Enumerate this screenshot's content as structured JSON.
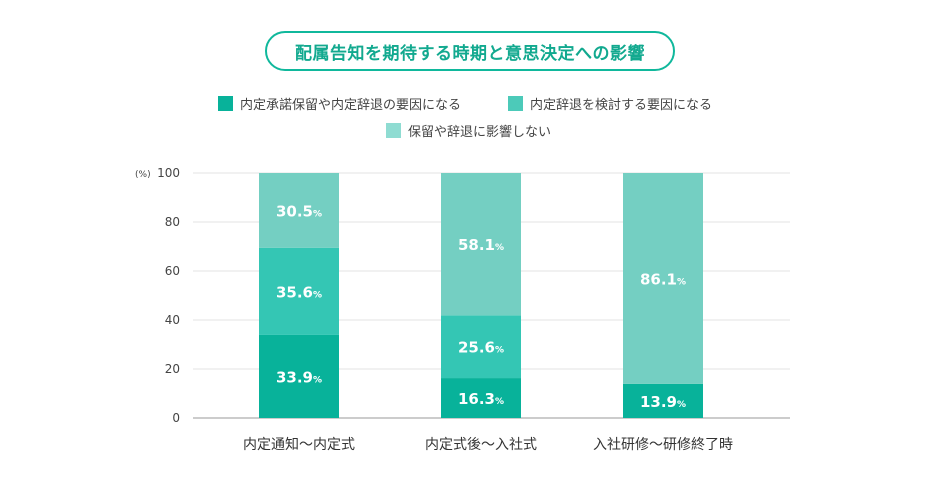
{
  "chart_data": {
    "type": "bar",
    "stacked": true,
    "title": "配属告知を期待する時期と意思決定への影響",
    "ylabel": "(%)",
    "ylim": [
      0,
      100
    ],
    "yticks": [
      0,
      20,
      40,
      60,
      80,
      100
    ],
    "grid": true,
    "legend_position": "top",
    "categories": [
      "内定通知〜内定式",
      "内定式後〜入社式",
      "入社研修〜研修終了時"
    ],
    "series": [
      {
        "name": "内定承諾保留や内定辞退の要因になる",
        "values": [
          33.9,
          16.3,
          13.9
        ],
        "labels": [
          "33.9",
          "16.3",
          "13.9"
        ],
        "color": "#08b29a"
      },
      {
        "name": "内定辞退を検討する要因になる",
        "values": [
          35.6,
          25.6,
          0
        ],
        "labels": [
          "35.6",
          "25.6",
          "0"
        ],
        "color": "#34c6b4"
      },
      {
        "name": "保留や辞退に影響しない",
        "values": [
          30.5,
          58.1,
          86.1
        ],
        "labels": [
          "30.5",
          "58.1",
          "86.1"
        ],
        "color": "#74cfc2"
      }
    ],
    "value_suffix": "%",
    "legend_colors": [
      "#08b29a",
      "#4ccab9",
      "#8fdcd2"
    ]
  }
}
